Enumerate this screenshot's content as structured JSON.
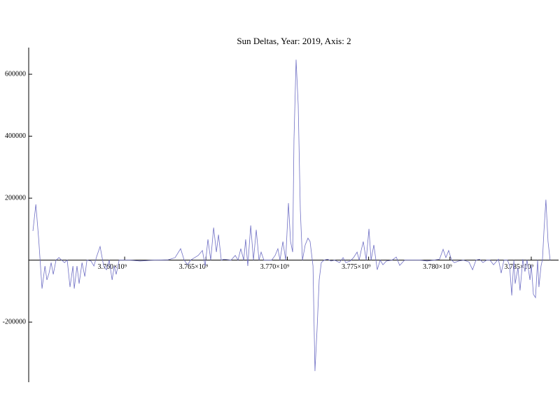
{
  "chart_data": {
    "type": "line",
    "title": "Sun Deltas, Year: 2019, Axis: 2",
    "x": [
      3754360000,
      3754540000,
      3754710000,
      3754920000,
      3755100000,
      3755220000,
      3755350000,
      3755480000,
      3755610000,
      3755780000,
      3755960000,
      3756130000,
      3756300000,
      3756470000,
      3756640000,
      3756820000,
      3756900000,
      3757070000,
      3757200000,
      3757380000,
      3757550000,
      3757680000,
      3757930000,
      3758110000,
      3758280000,
      3758490000,
      3758710000,
      3758880000,
      3759050000,
      3759230000,
      3759360000,
      3759480000,
      3759660000,
      3759910000,
      3760300000,
      3760950000,
      3761810000,
      3762670000,
      3763100000,
      3763440000,
      3763660000,
      3763870000,
      3764050000,
      3764300000,
      3764520000,
      3764780000,
      3764950000,
      3765120000,
      3765290000,
      3765470000,
      3765640000,
      3765770000,
      3765940000,
      3766110000,
      3766540000,
      3766800000,
      3766970000,
      3767140000,
      3767320000,
      3767440000,
      3767570000,
      3767750000,
      3767920000,
      3768090000,
      3768260000,
      3768390000,
      3768560000,
      3768820000,
      3769040000,
      3769250000,
      3769420000,
      3769550000,
      3769730000,
      3769900000,
      3770070000,
      3770200000,
      3770330000,
      3770410000,
      3770540000,
      3770670000,
      3770800000,
      3770930000,
      3771100000,
      3771270000,
      3771400000,
      3771580000,
      3771700000,
      3771830000,
      3771960000,
      3772090000,
      3772260000,
      3772480000,
      3772690000,
      3772910000,
      3773210000,
      3773430000,
      3773600000,
      3773860000,
      3774070000,
      3774290000,
      3774420000,
      3774540000,
      3774670000,
      3774850000,
      3775020000,
      3775150000,
      3775320000,
      3775530000,
      3775710000,
      3775880000,
      3776090000,
      3776440000,
      3776700000,
      3776910000,
      3777210000,
      3777730000,
      3778160000,
      3778590000,
      3779020000,
      3779360000,
      3779580000,
      3779750000,
      3779920000,
      3780100000,
      3780270000,
      3780530000,
      3780830000,
      3781170000,
      3781390000,
      3781600000,
      3781820000,
      3782030000,
      3782250000,
      3782460000,
      3782680000,
      3782980000,
      3783150000,
      3783320000,
      3783540000,
      3783670000,
      3783800000,
      3783930000,
      3784010000,
      3784180000,
      3784310000,
      3784480000,
      3784610000,
      3784740000,
      3784920000,
      3785000000,
      3785130000,
      3785260000,
      3785390000,
      3785470000,
      3785600000,
      3785690000,
      3785780000,
      3785900000,
      3786030000,
      3786160000
    ],
    "series": [
      {
        "color": "#6f6fc4",
        "values": [
          94000,
          180000,
          71000,
          -92000,
          -19000,
          -64000,
          -42000,
          -8000,
          -46000,
          0,
          8000,
          0,
          -8000,
          0,
          -87000,
          -19000,
          -92000,
          -19000,
          -76000,
          -8000,
          -53000,
          0,
          -3000,
          -19000,
          12000,
          44000,
          -19000,
          -31000,
          0,
          -64000,
          -19000,
          -46000,
          0,
          0,
          0,
          -3000,
          0,
          1000,
          8000,
          37000,
          0,
          -15000,
          0,
          8000,
          15000,
          31000,
          -19000,
          67000,
          0,
          105000,
          26000,
          82000,
          0,
          3000,
          0,
          15000,
          0,
          37000,
          0,
          67000,
          -19000,
          112000,
          0,
          98000,
          0,
          26000,
          0,
          0,
          0,
          15000,
          37000,
          0,
          60000,
          0,
          184000,
          60000,
          26000,
          388000,
          647000,
          501000,
          162000,
          0,
          49000,
          71000,
          60000,
          -19000,
          -358000,
          -223000,
          -64000,
          -8000,
          0,
          3000,
          -3000,
          0,
          -8000,
          8000,
          -8000,
          -3000,
          8000,
          26000,
          0,
          31000,
          60000,
          0,
          101000,
          0,
          49000,
          -31000,
          0,
          -15000,
          -3000,
          0,
          10000,
          -17000,
          0,
          0,
          0,
          -3000,
          0,
          3000,
          35000,
          8000,
          31000,
          0,
          -8000,
          -3000,
          0,
          -6000,
          -31000,
          0,
          3000,
          -8000,
          0,
          0,
          -15000,
          3000,
          -42000,
          0,
          0,
          -19000,
          -114000,
          0,
          -76000,
          -24000,
          -98000,
          3000,
          -37000,
          0,
          -64000,
          -15000,
          -110000,
          -121000,
          0,
          -87000,
          -19000,
          3000,
          94000,
          195000,
          60000,
          0
        ]
      }
    ],
    "xlim": [
      3754100000,
      3786680000
    ],
    "xticks": [
      {
        "value": 3760000000,
        "label": "3.760×10⁹"
      },
      {
        "value": 3765000000,
        "label": "3.765×10⁹"
      },
      {
        "value": 3770000000,
        "label": "3.770×10⁹"
      },
      {
        "value": 3775000000,
        "label": "3.775×10⁹"
      },
      {
        "value": 3780000000,
        "label": "3.780×10⁹"
      },
      {
        "value": 3785000000,
        "label": "3.785×10⁹"
      }
    ],
    "ylim": [
      -394000,
      686000
    ],
    "yticks": [
      -200000,
      200000,
      400000,
      600000
    ]
  }
}
